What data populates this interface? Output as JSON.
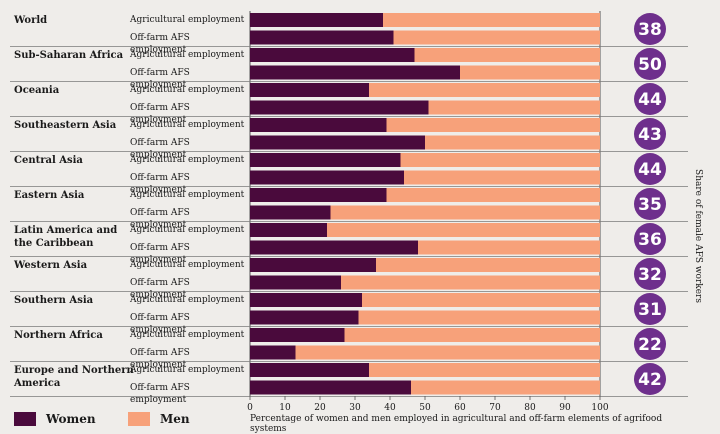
{
  "chart_data": {
    "type": "bar",
    "orientation": "horizontal",
    "stacked": true,
    "xlabel": "Percentage of women and men employed in agricultural and off-farm elements of agrifood systems",
    "side_title": "Share of female AFS workers",
    "xlim": [
      0,
      100
    ],
    "xticks": [
      "0",
      "10",
      "20",
      "30",
      "40",
      "50",
      "60",
      "70",
      "80",
      "90",
      "100"
    ],
    "series": [
      {
        "name": "Women",
        "color": "#4a0a3c"
      },
      {
        "name": "Men",
        "color": "#f7a17a"
      }
    ],
    "regions": [
      {
        "name": "World",
        "share": "38",
        "rows": [
          {
            "label": "Agricultural employment",
            "women": 38
          },
          {
            "label": "Off-farm AFS employment",
            "women": 41
          }
        ]
      },
      {
        "name": "Sub-Saharan Africa",
        "share": "50",
        "rows": [
          {
            "label": "Agricultural employment",
            "women": 47
          },
          {
            "label": "Off-farm AFS employment",
            "women": 60
          }
        ]
      },
      {
        "name": "Oceania",
        "share": "44",
        "rows": [
          {
            "label": "Agricultural employment",
            "women": 34
          },
          {
            "label": "Off-farm AFS employment",
            "women": 51
          }
        ]
      },
      {
        "name": "Southeastern Asia",
        "share": "43",
        "rows": [
          {
            "label": "Agricultural employment",
            "women": 39
          },
          {
            "label": "Off-farm AFS employment",
            "women": 50
          }
        ]
      },
      {
        "name": "Central Asia",
        "share": "44",
        "rows": [
          {
            "label": "Agricultural employment",
            "women": 43
          },
          {
            "label": "Off-farm AFS employment",
            "women": 44
          }
        ]
      },
      {
        "name": "Eastern Asia",
        "share": "35",
        "rows": [
          {
            "label": "Agricultural employment",
            "women": 39
          },
          {
            "label": "Off-farm AFS employment",
            "women": 23
          }
        ]
      },
      {
        "name": "Latin America and the Caribbean",
        "share": "36",
        "rows": [
          {
            "label": "Agricultural employment",
            "women": 22
          },
          {
            "label": "Off-farm AFS employment",
            "women": 48
          }
        ]
      },
      {
        "name": "Western Asia",
        "share": "32",
        "rows": [
          {
            "label": "Agricultural employment",
            "women": 36
          },
          {
            "label": "Off-farm AFS employment",
            "women": 26
          }
        ]
      },
      {
        "name": "Southern Asia",
        "share": "31",
        "rows": [
          {
            "label": "Agricultural employment",
            "women": 32
          },
          {
            "label": "Off-farm AFS employment",
            "women": 31
          }
        ]
      },
      {
        "name": "Northern Africa",
        "share": "22",
        "rows": [
          {
            "label": "Agricultural employment",
            "women": 27
          },
          {
            "label": "Off-farm AFS employment",
            "women": 13
          }
        ]
      },
      {
        "name": "Europe and Northern America",
        "share": "42",
        "rows": [
          {
            "label": "Agricultural employment",
            "women": 34
          },
          {
            "label": "Off-farm AFS employment",
            "women": 46
          }
        ]
      }
    ]
  },
  "legend": {
    "women_label": "Women",
    "men_label": "Men"
  }
}
